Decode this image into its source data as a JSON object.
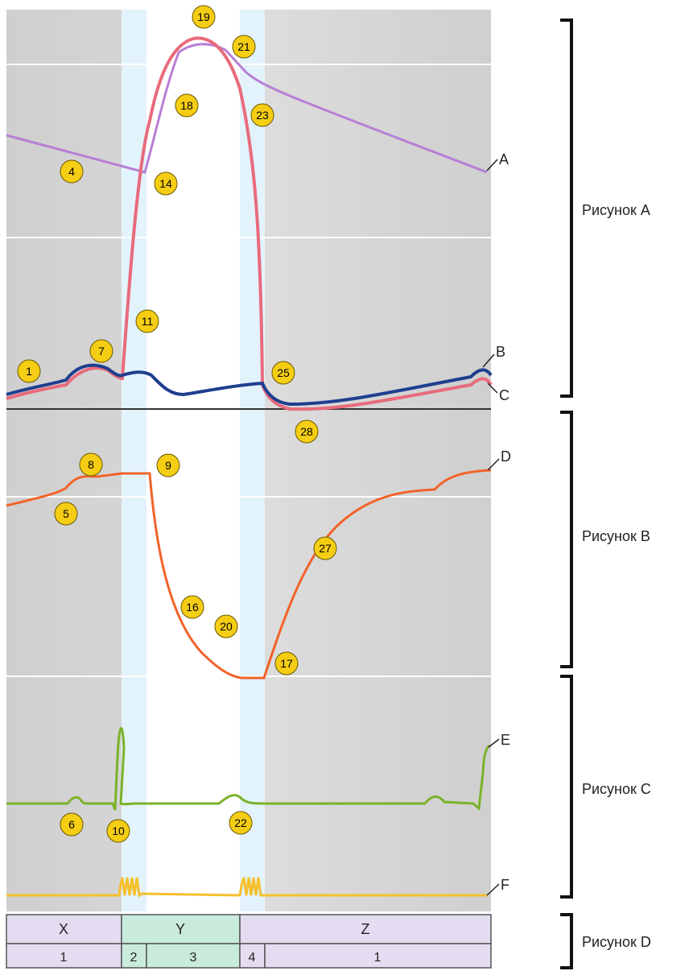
{
  "colors": {
    "A": "#b77fd6",
    "B": "#1f3f8f",
    "C": "#e86b7c",
    "D": "#f2632a",
    "E": "#7ab229",
    "F": "#f5c02d",
    "marker_fill": "#f5cd14",
    "phase_highlight": "#e3f3fc",
    "panel_bg": "#d9d9d9",
    "table_xz": "#e4ddf1",
    "table_y": "#c9ebdc"
  },
  "curve_labels": [
    "A",
    "B",
    "C",
    "D",
    "E",
    "F"
  ],
  "panel_labels": [
    "Рисунок A",
    "Рисунок B",
    "Рисунок C",
    "Рисунок D"
  ],
  "markers": [
    "1",
    "4",
    "5",
    "6",
    "7",
    "8",
    "9",
    "10",
    "11",
    "14",
    "16",
    "17",
    "18",
    "19",
    "20",
    "21",
    "22",
    "23",
    "25",
    "27",
    "28"
  ],
  "phase_table": {
    "top": [
      "X",
      "Y",
      "Z"
    ],
    "bottom": [
      "1",
      "2",
      "3",
      "4",
      "1"
    ]
  }
}
